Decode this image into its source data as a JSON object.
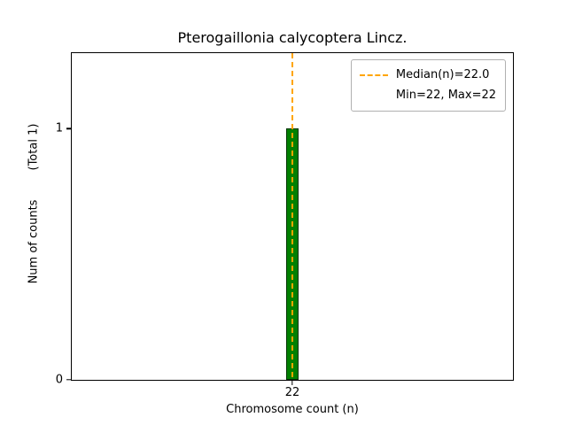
{
  "chart_data": {
    "type": "bar",
    "title": "Pterogaillonia calycoptera Lincz.",
    "xlabel": "Chromosome count (n)",
    "ylabel": "Num of counts        (Total 1)",
    "total_counts": 1,
    "x": [
      22
    ],
    "values": [
      1
    ],
    "bar_width": 0.03,
    "bar_color": "#008000",
    "bar_edge_color": "#003300",
    "xlim": [
      21.5,
      22.5
    ],
    "ylim": [
      0,
      1.3
    ],
    "xticks": [
      22
    ],
    "yticks": [
      0,
      1
    ],
    "grid": false,
    "median_line": {
      "value": 22.0,
      "color": "#ffa500",
      "style": "dashed"
    },
    "min": 22,
    "max": 22,
    "legend": {
      "position": "upper-right",
      "entries": [
        {
          "symbol": "dashed-line",
          "color": "#ffa500",
          "label": "Median(n)=22.0"
        },
        {
          "symbol": "none",
          "color": "",
          "label": "Min=22, Max=22"
        }
      ]
    }
  }
}
